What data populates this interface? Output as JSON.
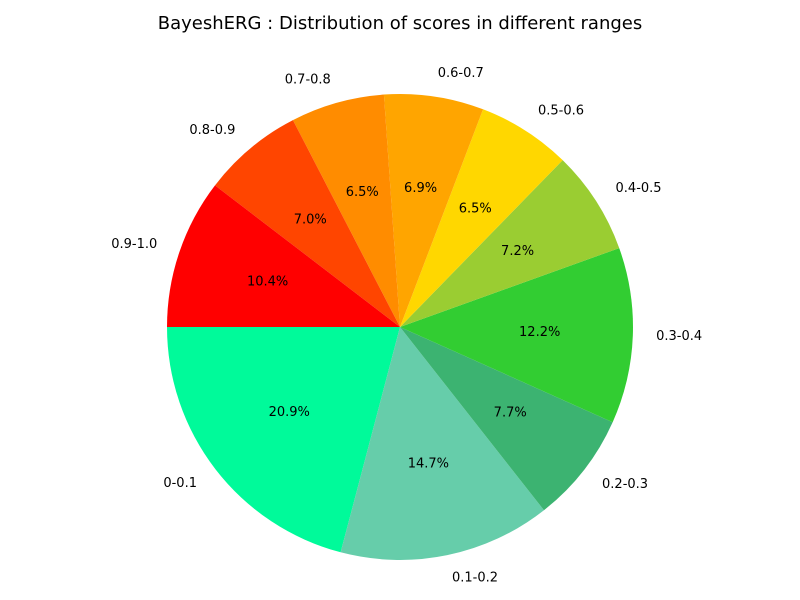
{
  "chart_data": {
    "type": "pie",
    "title": "BayeshERG : Distribution of scores in different ranges",
    "start_angle_deg": 180,
    "direction": "counterclockwise",
    "slices": [
      {
        "label": "0-0.1",
        "value": 20.9,
        "pct_label": "20.9%",
        "color": "#00FA9A"
      },
      {
        "label": "0.1-0.2",
        "value": 14.7,
        "pct_label": "14.7%",
        "color": "#66CDAA"
      },
      {
        "label": "0.2-0.3",
        "value": 7.7,
        "pct_label": "7.7%",
        "color": "#3CB371"
      },
      {
        "label": "0.3-0.4",
        "value": 12.2,
        "pct_label": "12.2%",
        "color": "#32CD32"
      },
      {
        "label": "0.4-0.5",
        "value": 7.2,
        "pct_label": "7.2%",
        "color": "#9ACD32"
      },
      {
        "label": "0.5-0.6",
        "value": 6.5,
        "pct_label": "6.5%",
        "color": "#FFD700"
      },
      {
        "label": "0.6-0.7",
        "value": 6.9,
        "pct_label": "6.9%",
        "color": "#FFA500"
      },
      {
        "label": "0.7-0.8",
        "value": 6.5,
        "pct_label": "6.5%",
        "color": "#FF8C00"
      },
      {
        "label": "0.8-0.9",
        "value": 7.0,
        "pct_label": "7.0%",
        "color": "#FF4500"
      },
      {
        "label": "0.9-1.0",
        "value": 10.4,
        "pct_label": "10.4%",
        "color": "#FF0000"
      }
    ]
  }
}
